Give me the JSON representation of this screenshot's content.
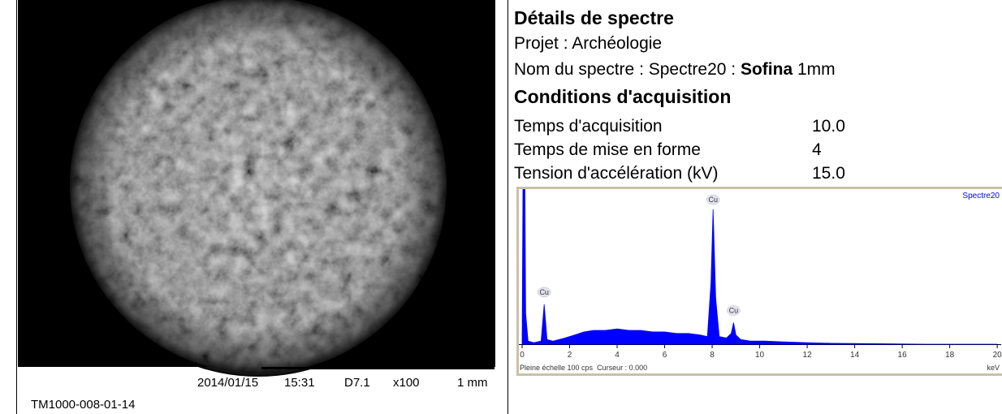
{
  "image": {
    "date": "2014/01/15",
    "time": "15:31",
    "distance": "D7.1",
    "magnification": "x100",
    "scale": "1 mm",
    "id": "TM1000-008-01-14"
  },
  "details": {
    "title": "Détails de spectre",
    "project": "Projet : Archéologie",
    "name_prefix": "Nom du spectre : Spectre20 : ",
    "name_bold": "Sofina",
    "name_suffix": " 1mm"
  },
  "conditions": {
    "title": "Conditions d'acquisition",
    "rows": [
      [
        "Temps d'acquisition",
        "10.0"
      ],
      [
        "Temps de mise en forme",
        "4"
      ],
      [
        "Tension d'accélération (kV)",
        "15.0"
      ]
    ]
  },
  "chart_data": {
    "type": "area",
    "x": [
      0,
      0.05,
      0.1,
      0.15,
      0.25,
      0.5,
      0.8,
      0.93,
      1.05,
      1.3,
      1.8,
      2.2,
      2.6,
      3.0,
      3.5,
      4.0,
      4.5,
      5.0,
      5.5,
      6.0,
      6.5,
      7.0,
      7.5,
      7.8,
      7.95,
      8.04,
      8.15,
      8.3,
      8.6,
      8.8,
      8.9,
      9.0,
      9.2,
      9.6,
      10.2,
      11,
      12,
      13,
      14,
      15,
      17,
      20
    ],
    "series": [
      {
        "name": "Spectre20",
        "color": "#0000ff",
        "values": [
          0,
          150,
          150,
          20,
          2,
          1,
          2,
          26,
          3,
          2,
          4,
          6,
          8,
          9,
          9,
          10,
          9,
          9,
          8,
          8,
          7,
          7,
          6,
          5,
          40,
          88,
          30,
          5,
          4,
          7,
          14,
          6,
          3,
          2,
          2,
          1.5,
          1,
          0.6,
          0.4,
          0.3,
          0,
          0
        ]
      }
    ],
    "xlim": [
      0,
      20.2
    ],
    "xticks": [
      0,
      2,
      4,
      6,
      8,
      10,
      12,
      14,
      16,
      18,
      20
    ],
    "ylim": [
      0,
      100
    ],
    "x_label": "keV",
    "footer": "Pleine échelle 100 cps  Curseur : 0.000",
    "annotations": [
      {
        "text": "Cu",
        "x": 0.93,
        "y": 26
      },
      {
        "text": "Cu",
        "x": 8.04,
        "y": 88
      },
      {
        "text": "Cu",
        "x": 8.9,
        "y": 14
      }
    ]
  }
}
